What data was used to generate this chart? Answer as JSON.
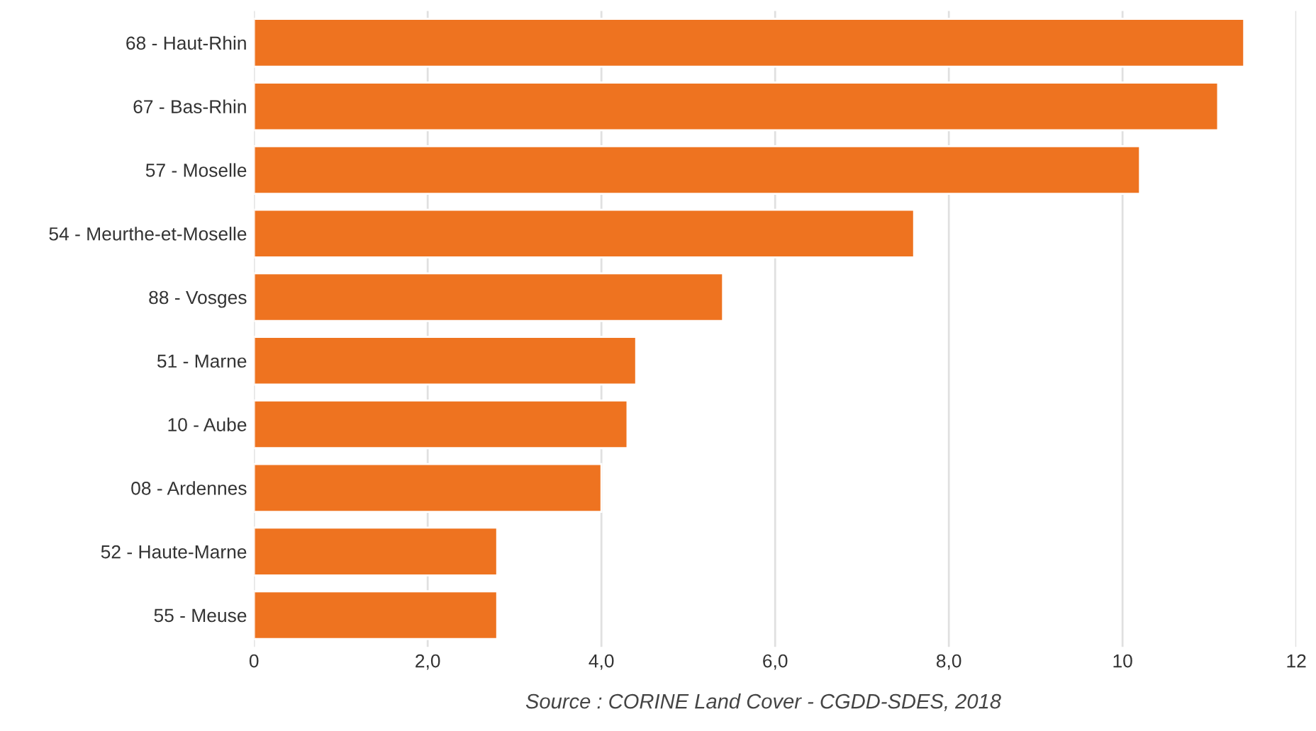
{
  "chart_data": {
    "type": "bar",
    "orientation": "horizontal",
    "categories": [
      "68 - Haut-Rhin",
      "67 - Bas-Rhin",
      "57 - Moselle",
      "54 - Meurthe-et-Moselle",
      "88 - Vosges",
      "51 - Marne",
      "10 - Aube",
      "08 - Ardennes",
      "52 - Haute-Marne",
      "55 - Meuse"
    ],
    "values": [
      11.4,
      11.1,
      10.2,
      7.6,
      5.4,
      4.4,
      4.3,
      4.0,
      2.8,
      2.8
    ],
    "color": "#ee7320",
    "xlim": [
      0,
      12
    ],
    "xticks": [
      0,
      {
        "value": 2,
        "label": "2,0"
      },
      {
        "value": 4,
        "label": "4,0"
      },
      {
        "value": 6,
        "label": "6,0"
      },
      {
        "value": 8,
        "label": "8,0"
      },
      10,
      12
    ],
    "grid": "x",
    "annotations": [
      "Source : CORINE Land Cover - CGDD-SDES, 2018"
    ]
  }
}
